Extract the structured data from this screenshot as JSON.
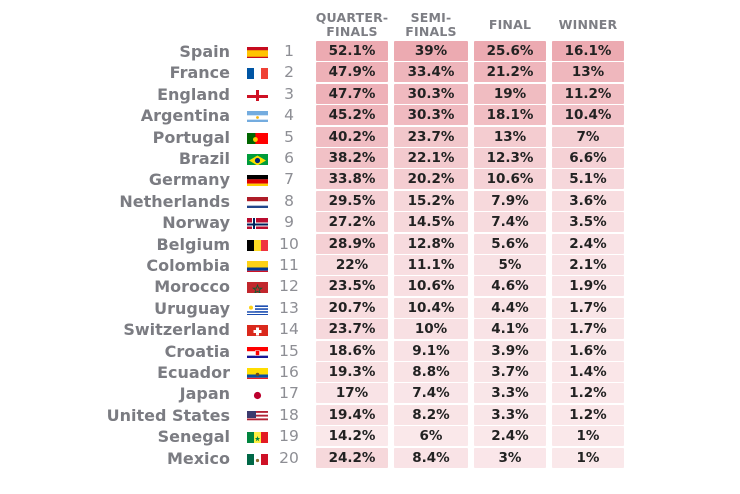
{
  "chart_data": {
    "type": "table",
    "columns": [
      "QUARTER-\nFINALS",
      "SEMI-\nFINALS",
      "FINAL",
      "WINNER"
    ],
    "rows": [
      {
        "team": "Spain",
        "flag": "spain",
        "rank": "1",
        "values": [
          "52.1%",
          "39%",
          "25.6%",
          "16.1%"
        ]
      },
      {
        "team": "France",
        "flag": "france",
        "rank": "2",
        "values": [
          "47.9%",
          "33.4%",
          "21.2%",
          "13%"
        ]
      },
      {
        "team": "England",
        "flag": "england",
        "rank": "3",
        "values": [
          "47.7%",
          "30.3%",
          "19%",
          "11.2%"
        ]
      },
      {
        "team": "Argentina",
        "flag": "argentina",
        "rank": "4",
        "values": [
          "45.2%",
          "30.3%",
          "18.1%",
          "10.4%"
        ]
      },
      {
        "team": "Portugal",
        "flag": "portugal",
        "rank": "5",
        "values": [
          "40.2%",
          "23.7%",
          "13%",
          "7%"
        ]
      },
      {
        "team": "Brazil",
        "flag": "brazil",
        "rank": "6",
        "values": [
          "38.2%",
          "22.1%",
          "12.3%",
          "6.6%"
        ]
      },
      {
        "team": "Germany",
        "flag": "germany",
        "rank": "7",
        "values": [
          "33.8%",
          "20.2%",
          "10.6%",
          "5.1%"
        ]
      },
      {
        "team": "Netherlands",
        "flag": "netherlands",
        "rank": "8",
        "values": [
          "29.5%",
          "15.2%",
          "7.9%",
          "3.6%"
        ]
      },
      {
        "team": "Norway",
        "flag": "norway",
        "rank": "9",
        "values": [
          "27.2%",
          "14.5%",
          "7.4%",
          "3.5%"
        ]
      },
      {
        "team": "Belgium",
        "flag": "belgium",
        "rank": "10",
        "values": [
          "28.9%",
          "12.8%",
          "5.6%",
          "2.4%"
        ]
      },
      {
        "team": "Colombia",
        "flag": "colombia",
        "rank": "11",
        "values": [
          "22%",
          "11.1%",
          "5%",
          "2.1%"
        ]
      },
      {
        "team": "Morocco",
        "flag": "morocco",
        "rank": "12",
        "values": [
          "23.5%",
          "10.6%",
          "4.6%",
          "1.9%"
        ]
      },
      {
        "team": "Uruguay",
        "flag": "uruguay",
        "rank": "13",
        "values": [
          "20.7%",
          "10.4%",
          "4.4%",
          "1.7%"
        ]
      },
      {
        "team": "Switzerland",
        "flag": "switzerland",
        "rank": "14",
        "values": [
          "23.7%",
          "10%",
          "4.1%",
          "1.7%"
        ]
      },
      {
        "team": "Croatia",
        "flag": "croatia",
        "rank": "15",
        "values": [
          "18.6%",
          "9.1%",
          "3.9%",
          "1.6%"
        ]
      },
      {
        "team": "Ecuador",
        "flag": "ecuador",
        "rank": "16",
        "values": [
          "19.3%",
          "8.8%",
          "3.7%",
          "1.4%"
        ]
      },
      {
        "team": "Japan",
        "flag": "japan",
        "rank": "17",
        "values": [
          "17%",
          "7.4%",
          "3.3%",
          "1.2%"
        ]
      },
      {
        "team": "United States",
        "flag": "usa",
        "rank": "18",
        "values": [
          "19.4%",
          "8.2%",
          "3.3%",
          "1.2%"
        ]
      },
      {
        "team": "Senegal",
        "flag": "senegal",
        "rank": "19",
        "values": [
          "14.2%",
          "6%",
          "2.4%",
          "1%"
        ]
      },
      {
        "team": "Mexico",
        "flag": "mexico",
        "rank": "20",
        "values": [
          "24.2%",
          "8.4%",
          "3%",
          "1%"
        ]
      }
    ]
  }
}
